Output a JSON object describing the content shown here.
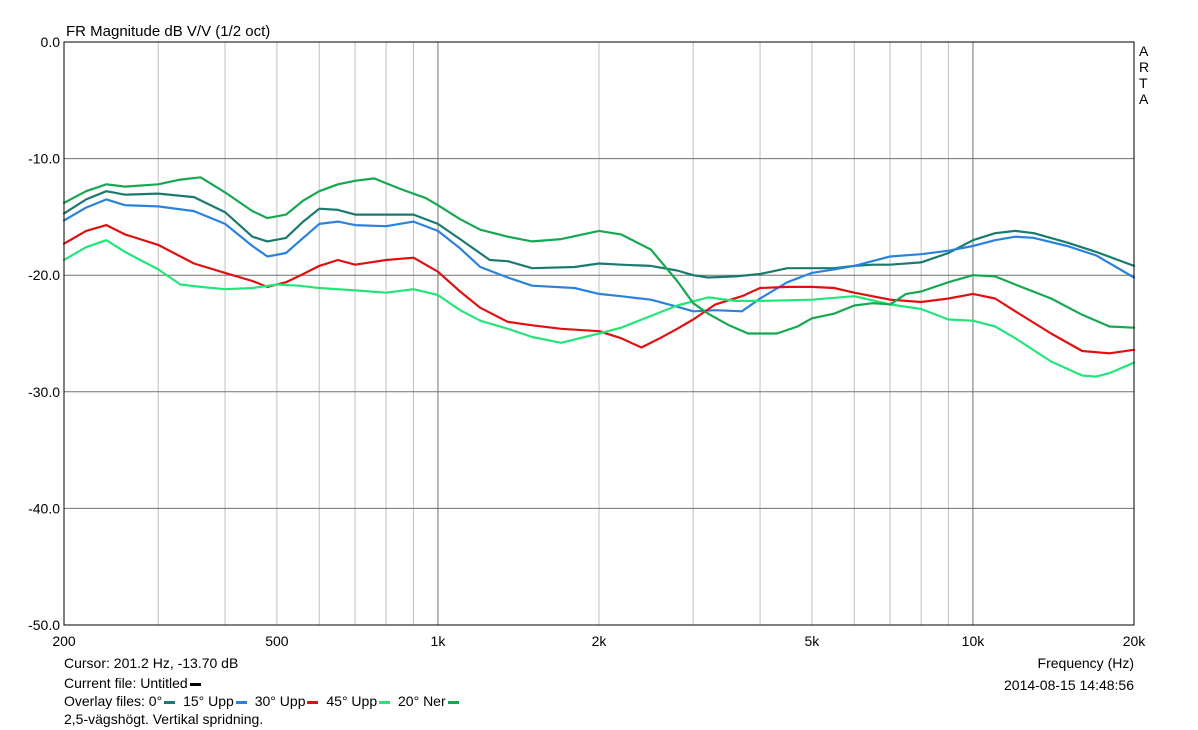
{
  "chart_data": {
    "type": "line",
    "title": "FR Magnitude dB V/V (1/2 oct)",
    "xlabel": "Frequency (Hz)",
    "ylabel": "",
    "x_scale": "log",
    "xlim": [
      200,
      20000
    ],
    "ylim": [
      -50,
      0
    ],
    "x_ticks": [
      200,
      500,
      1000,
      2000,
      5000,
      10000,
      20000
    ],
    "x_tick_labels": [
      "200",
      "500",
      "1k",
      "2k",
      "5k",
      "10k",
      "20k"
    ],
    "y_ticks": [
      0,
      -10,
      -20,
      -30,
      -40,
      -50
    ],
    "y_tick_labels": [
      "0.0",
      "-10.0",
      "-20.0",
      "-30.0",
      "-40.0",
      "-50.0"
    ],
    "grid": true,
    "brand": [
      "A",
      "R",
      "T",
      "A"
    ],
    "series": [
      {
        "name": "0°",
        "color": "#1a7a6e",
        "points": [
          [
            200,
            -14.7
          ],
          [
            220,
            -13.5
          ],
          [
            240,
            -12.8
          ],
          [
            260,
            -13.1
          ],
          [
            300,
            -13.0
          ],
          [
            350,
            -13.3
          ],
          [
            400,
            -14.6
          ],
          [
            450,
            -16.7
          ],
          [
            480,
            -17.1
          ],
          [
            520,
            -16.8
          ],
          [
            560,
            -15.4
          ],
          [
            600,
            -14.3
          ],
          [
            650,
            -14.4
          ],
          [
            700,
            -14.8
          ],
          [
            800,
            -14.8
          ],
          [
            900,
            -14.8
          ],
          [
            1000,
            -15.6
          ],
          [
            1100,
            -16.9
          ],
          [
            1250,
            -18.7
          ],
          [
            1350,
            -18.8
          ],
          [
            1500,
            -19.4
          ],
          [
            1800,
            -19.3
          ],
          [
            2000,
            -19.0
          ],
          [
            2200,
            -19.1
          ],
          [
            2500,
            -19.2
          ],
          [
            2800,
            -19.6
          ],
          [
            3000,
            -20.0
          ],
          [
            3200,
            -20.2
          ],
          [
            3600,
            -20.1
          ],
          [
            4000,
            -19.9
          ],
          [
            4500,
            -19.4
          ],
          [
            5000,
            -19.4
          ],
          [
            5500,
            -19.4
          ],
          [
            6000,
            -19.2
          ],
          [
            6500,
            -19.1
          ],
          [
            7000,
            -19.1
          ],
          [
            8000,
            -18.9
          ],
          [
            9000,
            -18.1
          ],
          [
            10000,
            -17.0
          ],
          [
            11000,
            -16.4
          ],
          [
            12000,
            -16.2
          ],
          [
            13000,
            -16.4
          ],
          [
            15000,
            -17.2
          ],
          [
            17000,
            -18.0
          ],
          [
            20000,
            -19.2
          ]
        ]
      },
      {
        "name": "15° Upp",
        "color": "#2a82e0",
        "points": [
          [
            200,
            -15.3
          ],
          [
            220,
            -14.2
          ],
          [
            240,
            -13.5
          ],
          [
            260,
            -14.0
          ],
          [
            300,
            -14.1
          ],
          [
            350,
            -14.5
          ],
          [
            400,
            -15.6
          ],
          [
            450,
            -17.5
          ],
          [
            480,
            -18.4
          ],
          [
            520,
            -18.1
          ],
          [
            560,
            -16.8
          ],
          [
            600,
            -15.6
          ],
          [
            650,
            -15.4
          ],
          [
            700,
            -15.7
          ],
          [
            800,
            -15.8
          ],
          [
            900,
            -15.4
          ],
          [
            1000,
            -16.2
          ],
          [
            1100,
            -17.7
          ],
          [
            1200,
            -19.3
          ],
          [
            1350,
            -20.2
          ],
          [
            1500,
            -20.9
          ],
          [
            1800,
            -21.1
          ],
          [
            2000,
            -21.6
          ],
          [
            2200,
            -21.8
          ],
          [
            2500,
            -22.1
          ],
          [
            2800,
            -22.7
          ],
          [
            3000,
            -23.1
          ],
          [
            3300,
            -23.0
          ],
          [
            3700,
            -23.1
          ],
          [
            4000,
            -22.0
          ],
          [
            4500,
            -20.6
          ],
          [
            5000,
            -19.8
          ],
          [
            5500,
            -19.5
          ],
          [
            6000,
            -19.2
          ],
          [
            7000,
            -18.4
          ],
          [
            8000,
            -18.2
          ],
          [
            9000,
            -17.9
          ],
          [
            10000,
            -17.5
          ],
          [
            11000,
            -17.0
          ],
          [
            12000,
            -16.7
          ],
          [
            13000,
            -16.8
          ],
          [
            15000,
            -17.5
          ],
          [
            17000,
            -18.3
          ],
          [
            20000,
            -20.2
          ]
        ]
      },
      {
        "name": "30° Upp",
        "color": "#e01010",
        "points": [
          [
            200,
            -17.3
          ],
          [
            220,
            -16.2
          ],
          [
            240,
            -15.7
          ],
          [
            260,
            -16.5
          ],
          [
            300,
            -17.4
          ],
          [
            350,
            -19.0
          ],
          [
            400,
            -19.8
          ],
          [
            450,
            -20.5
          ],
          [
            480,
            -21.0
          ],
          [
            520,
            -20.6
          ],
          [
            560,
            -19.9
          ],
          [
            600,
            -19.2
          ],
          [
            650,
            -18.7
          ],
          [
            700,
            -19.1
          ],
          [
            800,
            -18.7
          ],
          [
            900,
            -18.5
          ],
          [
            1000,
            -19.7
          ],
          [
            1100,
            -21.4
          ],
          [
            1200,
            -22.8
          ],
          [
            1350,
            -24.0
          ],
          [
            1500,
            -24.3
          ],
          [
            1700,
            -24.6
          ],
          [
            2000,
            -24.8
          ],
          [
            2200,
            -25.4
          ],
          [
            2400,
            -26.2
          ],
          [
            2600,
            -25.4
          ],
          [
            2800,
            -24.6
          ],
          [
            3000,
            -23.8
          ],
          [
            3300,
            -22.5
          ],
          [
            3700,
            -21.8
          ],
          [
            4000,
            -21.1
          ],
          [
            4500,
            -21.0
          ],
          [
            5000,
            -21.0
          ],
          [
            5500,
            -21.1
          ],
          [
            6000,
            -21.5
          ],
          [
            7000,
            -22.1
          ],
          [
            8000,
            -22.3
          ],
          [
            9000,
            -22.0
          ],
          [
            10000,
            -21.6
          ],
          [
            11000,
            -22.0
          ],
          [
            12000,
            -23.1
          ],
          [
            14000,
            -25.0
          ],
          [
            16000,
            -26.5
          ],
          [
            18000,
            -26.7
          ],
          [
            20000,
            -26.4
          ]
        ]
      },
      {
        "name": "45° Upp",
        "color": "#22e67a",
        "points": [
          [
            200,
            -18.7
          ],
          [
            220,
            -17.6
          ],
          [
            240,
            -17.0
          ],
          [
            260,
            -18.0
          ],
          [
            300,
            -19.5
          ],
          [
            330,
            -20.8
          ],
          [
            360,
            -21.0
          ],
          [
            400,
            -21.2
          ],
          [
            450,
            -21.1
          ],
          [
            500,
            -20.8
          ],
          [
            550,
            -20.9
          ],
          [
            600,
            -21.1
          ],
          [
            700,
            -21.3
          ],
          [
            800,
            -21.5
          ],
          [
            900,
            -21.2
          ],
          [
            1000,
            -21.7
          ],
          [
            1100,
            -23.0
          ],
          [
            1200,
            -23.9
          ],
          [
            1350,
            -24.6
          ],
          [
            1500,
            -25.3
          ],
          [
            1700,
            -25.8
          ],
          [
            2000,
            -25.0
          ],
          [
            2200,
            -24.5
          ],
          [
            2500,
            -23.5
          ],
          [
            2800,
            -22.6
          ],
          [
            3200,
            -21.9
          ],
          [
            3600,
            -22.2
          ],
          [
            4000,
            -22.2
          ],
          [
            5000,
            -22.1
          ],
          [
            6000,
            -21.8
          ],
          [
            7000,
            -22.5
          ],
          [
            8000,
            -22.9
          ],
          [
            9000,
            -23.8
          ],
          [
            10000,
            -23.9
          ],
          [
            11000,
            -24.4
          ],
          [
            12000,
            -25.4
          ],
          [
            14000,
            -27.4
          ],
          [
            16000,
            -28.6
          ],
          [
            17000,
            -28.7
          ],
          [
            18000,
            -28.4
          ],
          [
            20000,
            -27.5
          ]
        ]
      },
      {
        "name": "20° Ner",
        "color": "#15a850",
        "points": [
          [
            200,
            -13.8
          ],
          [
            220,
            -12.8
          ],
          [
            240,
            -12.2
          ],
          [
            260,
            -12.4
          ],
          [
            300,
            -12.2
          ],
          [
            330,
            -11.8
          ],
          [
            360,
            -11.6
          ],
          [
            400,
            -12.9
          ],
          [
            450,
            -14.5
          ],
          [
            480,
            -15.1
          ],
          [
            520,
            -14.8
          ],
          [
            560,
            -13.6
          ],
          [
            600,
            -12.8
          ],
          [
            650,
            -12.2
          ],
          [
            700,
            -11.9
          ],
          [
            760,
            -11.7
          ],
          [
            850,
            -12.6
          ],
          [
            950,
            -13.4
          ],
          [
            1000,
            -14.0
          ],
          [
            1100,
            -15.2
          ],
          [
            1200,
            -16.1
          ],
          [
            1350,
            -16.7
          ],
          [
            1500,
            -17.1
          ],
          [
            1700,
            -16.9
          ],
          [
            2000,
            -16.2
          ],
          [
            2200,
            -16.5
          ],
          [
            2500,
            -17.8
          ],
          [
            2800,
            -20.5
          ],
          [
            3000,
            -22.4
          ],
          [
            3200,
            -23.3
          ],
          [
            3500,
            -24.3
          ],
          [
            3800,
            -25.0
          ],
          [
            4300,
            -25.0
          ],
          [
            4700,
            -24.4
          ],
          [
            5000,
            -23.7
          ],
          [
            5500,
            -23.3
          ],
          [
            6000,
            -22.6
          ],
          [
            6500,
            -22.4
          ],
          [
            7000,
            -22.5
          ],
          [
            7500,
            -21.6
          ],
          [
            8000,
            -21.4
          ],
          [
            9000,
            -20.6
          ],
          [
            10000,
            -20.0
          ],
          [
            11000,
            -20.1
          ],
          [
            12000,
            -20.8
          ],
          [
            14000,
            -22.0
          ],
          [
            16000,
            -23.4
          ],
          [
            18000,
            -24.4
          ],
          [
            20000,
            -24.5
          ]
        ]
      }
    ]
  },
  "info": {
    "cursor": "Cursor: 201.2 Hz, -13.70 dB",
    "current_file": "Current file: Untitled",
    "current_file_color": "#000000",
    "overlay_label": "Overlay files:",
    "description": "2,5-vägshögt. Vertikal spridning.",
    "xaxis_label": "Frequency (Hz)",
    "timestamp": "2014-08-15  14:48:56"
  }
}
